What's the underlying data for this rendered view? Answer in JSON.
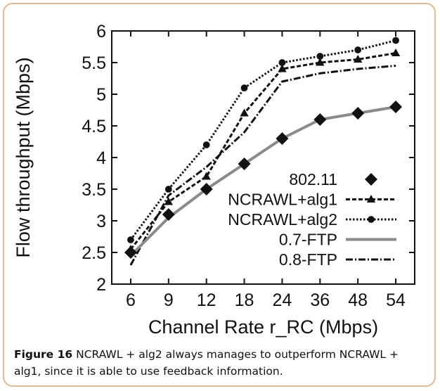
{
  "chart_data": {
    "type": "line",
    "xlabel": "Channel Rate r_RC (Mbps)",
    "ylabel": "Flow throughput (Mbps)",
    "categories": [
      "6",
      "9",
      "12",
      "18",
      "24",
      "36",
      "48",
      "54"
    ],
    "ylim": [
      2,
      6
    ],
    "yticks": [
      "2",
      "2.5",
      "3",
      "3.5",
      "4",
      "4.5",
      "5",
      "5.5",
      "6"
    ],
    "grid": false,
    "legend_position": "center-right",
    "series": [
      {
        "name": "802.11",
        "values": [
          2.5,
          3.1,
          3.5,
          3.9,
          4.3,
          4.6,
          4.7,
          4.8
        ],
        "style": "markers",
        "marker": "diamond"
      },
      {
        "name": "NCRAWL+alg1",
        "values": [
          2.55,
          3.3,
          3.7,
          4.7,
          5.4,
          5.5,
          5.55,
          5.65
        ],
        "style": "dashed",
        "marker": "triangle"
      },
      {
        "name": "NCRAWL+alg2",
        "values": [
          2.7,
          3.5,
          4.2,
          5.1,
          5.5,
          5.6,
          5.7,
          5.85
        ],
        "style": "dotted",
        "marker": "circle"
      },
      {
        "name": "0.7-FTP",
        "values": [
          2.45,
          3.05,
          3.5,
          3.9,
          4.3,
          4.6,
          4.7,
          4.8
        ],
        "style": "gray",
        "marker": "none"
      },
      {
        "name": "0.8-FTP",
        "values": [
          2.3,
          3.4,
          3.85,
          4.4,
          5.2,
          5.33,
          5.4,
          5.45
        ],
        "style": "dashdot",
        "marker": "none"
      }
    ]
  },
  "caption": {
    "label": "Figure 16",
    "text": "NCRAWL + alg2 always manages to outperform NCRAWL + alg1, since it is able to use feedback information."
  }
}
